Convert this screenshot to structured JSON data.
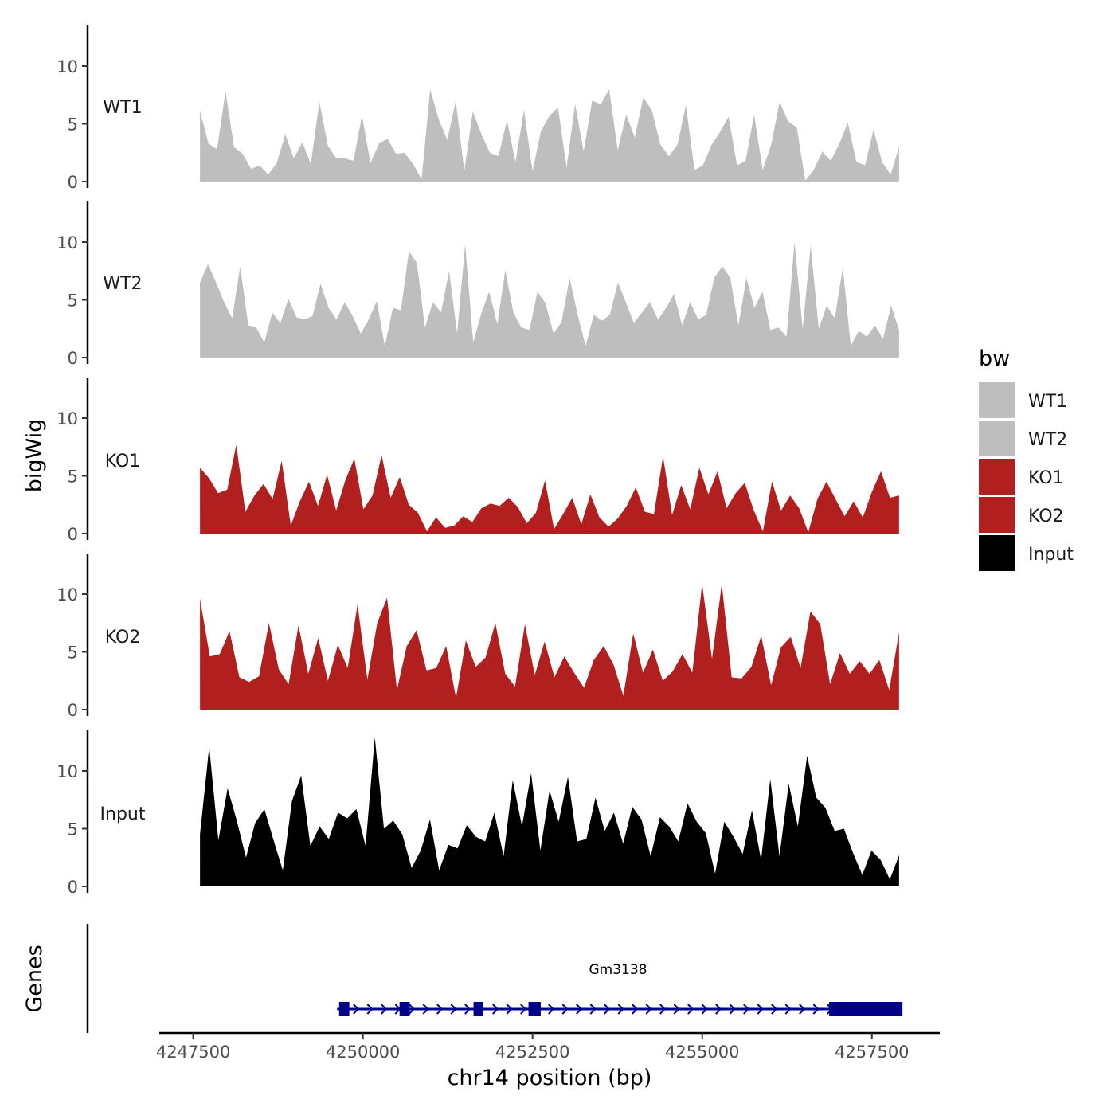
{
  "chart_data": {
    "type": "area",
    "chromosome": "chr14",
    "xlabel": "chr14 position (bp)",
    "ylabel": "bigWig",
    "genes_label": "Genes",
    "xlim": [
      4247000,
      4258500
    ],
    "ylim": [
      0,
      14
    ],
    "x_ticks": [
      4247500,
      4250000,
      4252500,
      4255000,
      4257500
    ],
    "x_tick_labels": [
      "4247500",
      "4250000",
      "4252500",
      "4255000",
      "4257500"
    ],
    "y_ticks": [
      0,
      5,
      10
    ],
    "y_tick_labels": [
      "0",
      "5",
      "10"
    ],
    "region_start": 4247600,
    "region_end": 4257900,
    "legend": {
      "title": "bw",
      "placement": "right",
      "entries": [
        {
          "label": "WT1",
          "color": "#bebebe"
        },
        {
          "label": "WT2",
          "color": "#bebebe"
        },
        {
          "label": "KO1",
          "color": "#b21f1f"
        },
        {
          "label": "KO2",
          "color": "#b21f1f"
        },
        {
          "label": "Input",
          "color": "#000000"
        }
      ]
    },
    "series": [
      {
        "name": "WT1",
        "color": "#bebebe",
        "values": [
          6.1,
          3.3,
          2.8,
          7.8,
          3.0,
          2.4,
          1.1,
          1.4,
          0.6,
          1.6,
          4.1,
          2.0,
          3.4,
          1.5,
          6.9,
          3.1,
          2.0,
          2.0,
          1.8,
          5.7,
          1.6,
          3.3,
          3.7,
          2.4,
          2.5,
          1.5,
          0.2,
          8.0,
          5.4,
          3.6,
          7.0,
          0.9,
          6.1,
          4.1,
          2.5,
          2.2,
          5.3,
          1.7,
          6.2,
          0.9,
          4.4,
          5.7,
          6.4,
          1.2,
          6.7,
          2.6,
          7.0,
          6.7,
          8.0,
          2.7,
          5.8,
          3.8,
          7.3,
          6.2,
          3.2,
          2.2,
          3.2,
          6.6,
          1.0,
          1.4,
          3.2,
          4.3,
          5.6,
          1.4,
          1.8,
          5.8,
          1.0,
          3.2,
          6.9,
          5.2,
          4.7,
          0.1,
          1.0,
          2.6,
          1.8,
          3.3,
          5.1,
          1.7,
          1.4,
          4.5,
          1.7,
          0.6,
          3.0
        ]
      },
      {
        "name": "WT2",
        "color": "#bebebe",
        "values": [
          6.5,
          8.1,
          6.5,
          4.8,
          3.4,
          7.9,
          2.8,
          2.6,
          1.3,
          3.9,
          3.0,
          5.1,
          3.5,
          3.3,
          3.6,
          6.4,
          4.3,
          3.3,
          4.8,
          3.6,
          2.1,
          3.3,
          4.9,
          1.0,
          4.3,
          4.1,
          9.2,
          8.2,
          2.6,
          4.8,
          3.9,
          7.5,
          2.1,
          9.8,
          1.3,
          3.8,
          5.7,
          2.9,
          7.6,
          3.9,
          2.6,
          2.4,
          5.7,
          4.7,
          2.1,
          3.1,
          6.9,
          3.7,
          1.0,
          3.7,
          3.2,
          3.7,
          6.5,
          4.8,
          3.0,
          3.9,
          4.8,
          3.3,
          4.3,
          5.5,
          2.8,
          4.8,
          3.3,
          3.7,
          6.9,
          7.9,
          6.9,
          2.8,
          6.9,
          4.3,
          5.7,
          2.4,
          2.6,
          1.8,
          10.0,
          2.5,
          9.7,
          2.5,
          4.5,
          3.4,
          7.8,
          1.0,
          2.3,
          1.8,
          2.8,
          1.6,
          4.5,
          2.4
        ]
      },
      {
        "name": "KO1",
        "color": "#b21f1f",
        "values": [
          5.7,
          4.8,
          3.5,
          3.8,
          7.7,
          1.9,
          3.3,
          4.3,
          3.0,
          6.3,
          0.7,
          2.8,
          4.5,
          2.4,
          5.1,
          2.0,
          4.6,
          6.5,
          2.1,
          3.3,
          6.8,
          3.1,
          4.9,
          2.5,
          1.8,
          0.2,
          1.4,
          0.5,
          0.7,
          1.5,
          1.0,
          2.2,
          2.6,
          2.4,
          3.1,
          2.3,
          0.9,
          1.8,
          4.6,
          0.4,
          1.7,
          3.1,
          0.8,
          3.4,
          1.4,
          0.6,
          1.3,
          2.4,
          4.0,
          1.9,
          1.7,
          6.7,
          1.6,
          4.2,
          2.1,
          5.7,
          3.4,
          5.4,
          2.2,
          3.5,
          4.4,
          2.0,
          0.2,
          4.5,
          2.0,
          3.3,
          2.2,
          0.1,
          3.0,
          4.5,
          3.0,
          1.5,
          2.8,
          1.4,
          3.6,
          5.4,
          3.1,
          3.3
        ]
      },
      {
        "name": "KO2",
        "color": "#b21f1f",
        "values": [
          9.6,
          4.6,
          4.8,
          6.8,
          2.8,
          2.4,
          2.9,
          7.5,
          3.5,
          2.2,
          7.3,
          3.1,
          6.2,
          2.5,
          5.6,
          3.6,
          9.1,
          2.6,
          7.5,
          9.7,
          1.7,
          5.5,
          6.9,
          3.4,
          3.6,
          5.5,
          1.0,
          6.0,
          3.7,
          4.5,
          7.5,
          3.1,
          2.0,
          7.4,
          3.0,
          5.9,
          2.8,
          4.6,
          3.2,
          1.9,
          4.3,
          5.5,
          3.9,
          1.2,
          6.6,
          3.2,
          5.2,
          2.5,
          3.3,
          4.8,
          3.2,
          10.9,
          4.4,
          10.9,
          2.8,
          2.7,
          3.7,
          6.4,
          2.1,
          5.4,
          6.3,
          3.6,
          8.5,
          7.4,
          2.2,
          4.9,
          3.1,
          4.2,
          3.1,
          4.3,
          1.7,
          6.7
        ]
      },
      {
        "name": "Input",
        "color": "#000000",
        "values": [
          4.5,
          12.1,
          4.0,
          8.5,
          5.7,
          2.5,
          5.5,
          6.7,
          4.0,
          1.4,
          7.4,
          9.6,
          3.5,
          5.2,
          4.1,
          6.4,
          5.9,
          6.7,
          3.5,
          12.9,
          5.0,
          5.7,
          4.5,
          1.6,
          3.1,
          5.8,
          1.4,
          3.6,
          3.3,
          5.3,
          4.3,
          3.9,
          6.4,
          2.6,
          9.2,
          5.2,
          9.8,
          3.1,
          8.3,
          5.6,
          9.5,
          3.9,
          4.1,
          7.7,
          4.8,
          6.4,
          3.7,
          6.9,
          5.8,
          2.6,
          6.0,
          5.2,
          3.9,
          7.2,
          5.6,
          4.6,
          1.1,
          5.6,
          4.3,
          2.8,
          6.6,
          2.3,
          9.3,
          2.6,
          8.9,
          5.2,
          11.3,
          7.7,
          6.8,
          4.8,
          5.0,
          2.9,
          1.0,
          3.1,
          2.3,
          0.6,
          2.7
        ]
      }
    ],
    "gene": {
      "name": "Gm3138",
      "strand": "+",
      "start": 4249620,
      "end": 4257950,
      "exons": [
        {
          "start": 4249650,
          "end": 4249800
        },
        {
          "start": 4250540,
          "end": 4250690
        },
        {
          "start": 4251630,
          "end": 4251770
        },
        {
          "start": 4252440,
          "end": 4252620
        },
        {
          "start": 4256870,
          "end": 4257950
        }
      ],
      "color": "#00008b"
    }
  }
}
